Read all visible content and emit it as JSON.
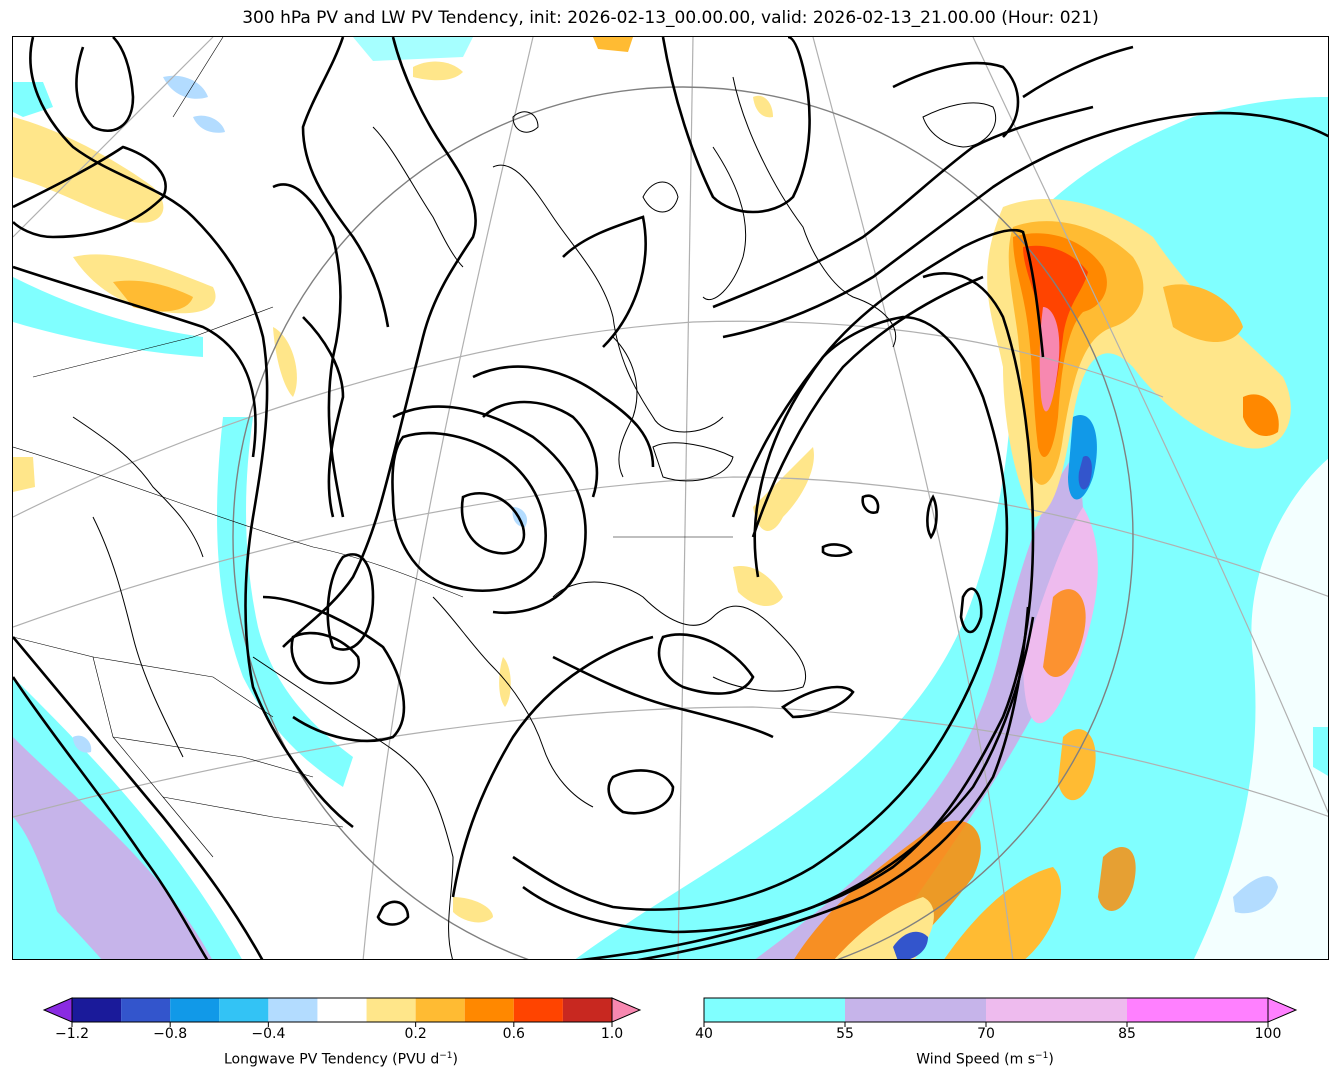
{
  "title": "300 hPa PV and LW PV Tendency, init: 2026-02-13_00.00.00, valid: 2026-02-13_21.00.00 (Hour: 021)",
  "colorbars": {
    "pv_tendency": {
      "label_main": "Longwave PV Tendency (PVU d",
      "label_exp": "−1",
      "label_end": ")",
      "ticks": [
        "−1.2",
        "−0.8",
        "−0.4",
        "0.2",
        "0.6",
        "1.0"
      ],
      "colors": [
        "#8a2be2",
        "#1a1a9a",
        "#3355cc",
        "#1199e8",
        "#33c3f5",
        "#b3dcff",
        "#ffffff",
        "#ffe68a",
        "#ffbb33",
        "#ff8800",
        "#ff4400",
        "#c82820",
        "#f788b0"
      ]
    },
    "wind_speed": {
      "label_main": "Wind Speed (m s",
      "label_exp": "−1",
      "label_end": ")",
      "ticks": [
        "40",
        "55",
        "70",
        "85",
        "100"
      ],
      "colors": [
        "#80ffff",
        "#c6b4ea",
        "#eebbee",
        "#ff80ff"
      ]
    }
  },
  "map": {
    "colors": {
      "jet_low": "#80ffff",
      "jet_mid": "#c6b4ea",
      "jet_high": "#eebbee",
      "pv_pos_weak": "#ffe68a",
      "pv_pos_mod": "#ffbb33",
      "pv_pos_strong": "#ff8800",
      "pv_pos_max": "#ff4400",
      "pv_neg_weak": "#b3dcff",
      "pv_neg_mod": "#1199e8",
      "pv_neg_strong": "#3355cc",
      "contour": "#000000",
      "grid": "#b0b0b0"
    }
  }
}
